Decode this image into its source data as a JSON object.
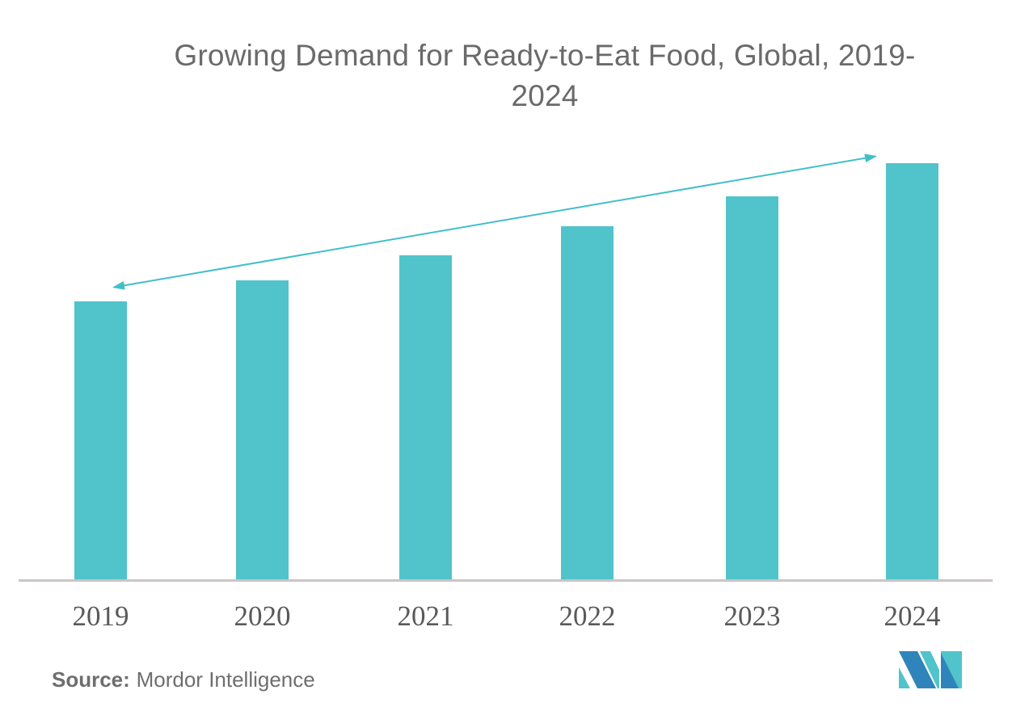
{
  "title": {
    "line1": "Growing Demand for Ready-to-Eat Food, Global, 2019-",
    "line2": "2024"
  },
  "source": {
    "bold": "Source:",
    "text": "Mordor Intelligence"
  },
  "logo": {
    "name": "mordor-intelligence-logo",
    "blue": "#2F84BB",
    "teal": "#50C4CA"
  },
  "colors": {
    "bar": "#50C4CA",
    "arrow": "#41BFC9",
    "title_text": "#6A6A6A",
    "year_label": "#595959",
    "axis_line": "#CBC5C5",
    "source_text": "#6E6E6E",
    "background": "#FFFFFF"
  },
  "chart_data": {
    "type": "bar",
    "title": "Growing Demand for Ready-to-Eat Food, Global, 2019-2024",
    "categories": [
      "2019",
      "2020",
      "2021",
      "2022",
      "2023",
      "2024"
    ],
    "values": [
      67,
      72,
      78,
      85,
      92,
      100
    ],
    "values_unit": "relative index (no y-axis values shown in chart)",
    "xlabel": "",
    "ylabel": "",
    "ylim": [
      0,
      100
    ],
    "grid": false,
    "legend": false,
    "annotations": [
      "double-headed upward trend arrow spanning from top of 2019 bar to top of 2024 bar"
    ]
  }
}
